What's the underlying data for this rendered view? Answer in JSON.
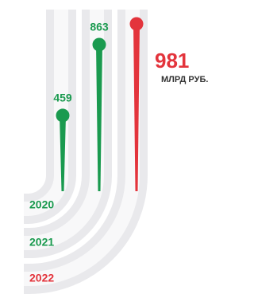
{
  "chart_data": {
    "type": "lollipop",
    "categories": [
      "2020",
      "2021",
      "2022"
    ],
    "values": [
      459,
      863,
      981
    ],
    "colors": [
      "#1a9a4f",
      "#1a9a4f",
      "#e3343c"
    ],
    "unit": "МЛРД РУБ."
  }
}
